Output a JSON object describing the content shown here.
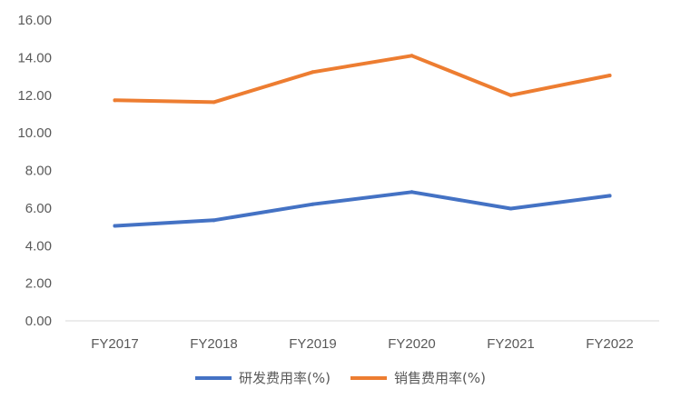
{
  "chart_data": {
    "type": "line",
    "categories": [
      "FY2017",
      "FY2018",
      "FY2019",
      "FY2020",
      "FY2021",
      "FY2022"
    ],
    "series": [
      {
        "name": "研发费用率(%)",
        "color": "#4472C4",
        "values": [
          5.05,
          5.35,
          6.2,
          6.85,
          5.97,
          6.65
        ]
      },
      {
        "name": "销售费用率(%)",
        "color": "#ED7D31",
        "values": [
          11.73,
          11.63,
          13.23,
          14.1,
          12.0,
          13.05
        ]
      }
    ],
    "ylim": [
      0,
      16
    ],
    "yticks": [
      "0.00",
      "2.00",
      "4.00",
      "6.00",
      "8.00",
      "10.00",
      "12.00",
      "14.00",
      "16.00"
    ],
    "grid": false,
    "legend_position": "bottom"
  }
}
